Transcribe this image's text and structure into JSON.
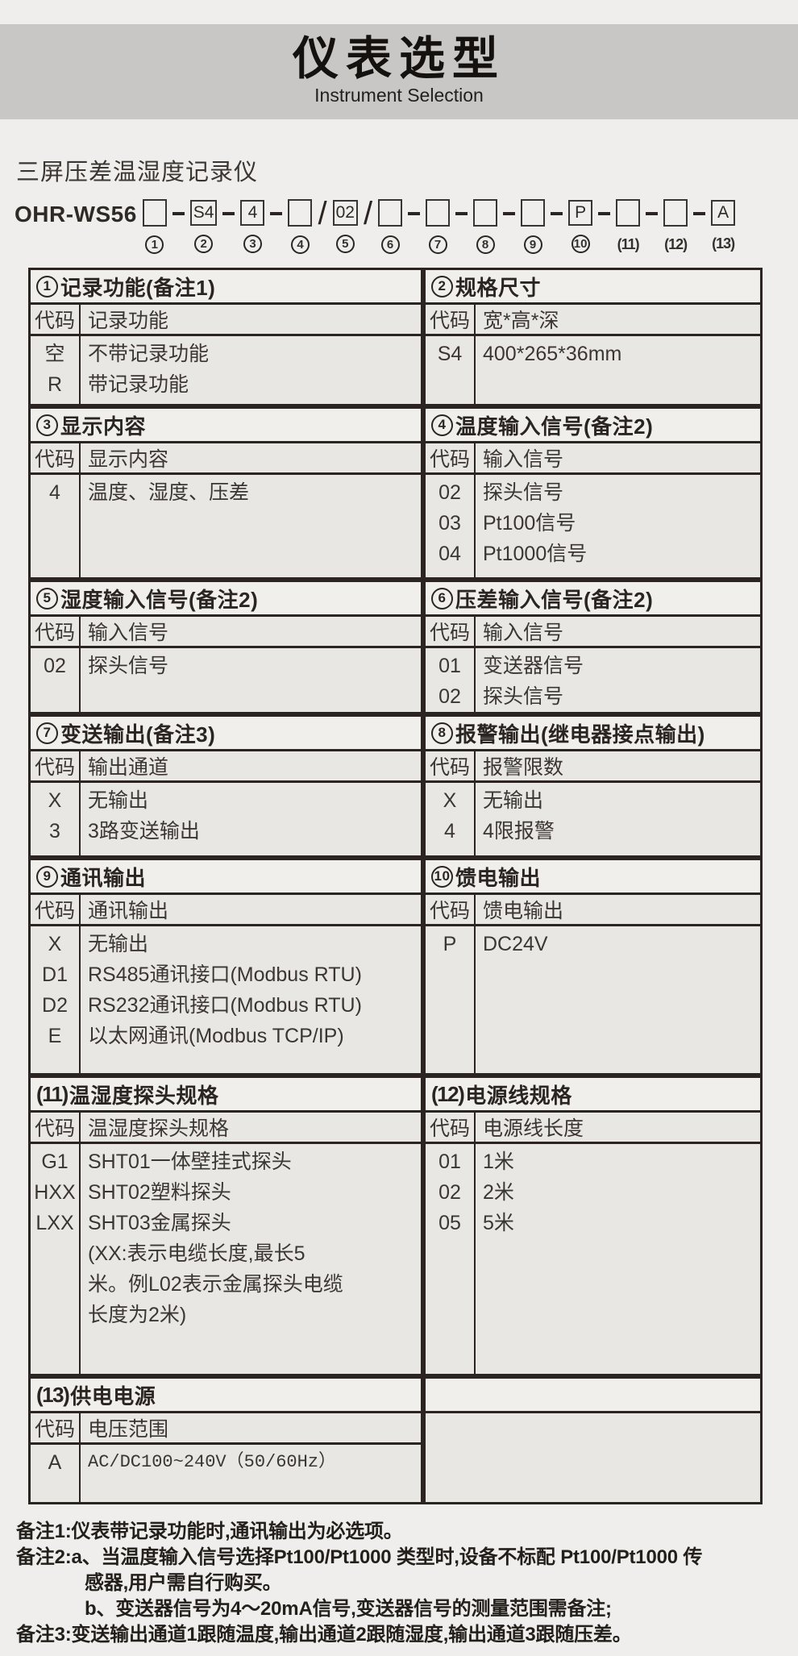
{
  "banner": {
    "title": "仪表选型",
    "subtitle": "Instrument Selection"
  },
  "product": {
    "name": "三屏压差温湿度记录仪",
    "model_prefix": "OHR-WS56"
  },
  "model_code": {
    "segments": [
      {
        "kind": "box",
        "value": "",
        "num": "1",
        "num_style": "circle"
      },
      {
        "kind": "dash"
      },
      {
        "kind": "box",
        "value": "S4",
        "num": "2",
        "num_style": "circle"
      },
      {
        "kind": "dash"
      },
      {
        "kind": "box",
        "value": "4",
        "num": "3",
        "num_style": "circle"
      },
      {
        "kind": "dash"
      },
      {
        "kind": "box",
        "value": "",
        "num": "4",
        "num_style": "circle"
      },
      {
        "kind": "slash",
        "value": "/"
      },
      {
        "kind": "box",
        "value": "02",
        "num": "5",
        "num_style": "circle"
      },
      {
        "kind": "slash",
        "value": "/"
      },
      {
        "kind": "box",
        "value": "",
        "num": "6",
        "num_style": "circle"
      },
      {
        "kind": "dash"
      },
      {
        "kind": "box",
        "value": "",
        "num": "7",
        "num_style": "circle"
      },
      {
        "kind": "dash"
      },
      {
        "kind": "box",
        "value": "",
        "num": "8",
        "num_style": "circle"
      },
      {
        "kind": "dash"
      },
      {
        "kind": "box",
        "value": "",
        "num": "9",
        "num_style": "circle"
      },
      {
        "kind": "dash"
      },
      {
        "kind": "box",
        "value": "P",
        "num": "10",
        "num_style": "circle"
      },
      {
        "kind": "dash"
      },
      {
        "kind": "box",
        "value": "",
        "num": "11",
        "num_style": "paren"
      },
      {
        "kind": "dash"
      },
      {
        "kind": "box",
        "value": "",
        "num": "12",
        "num_style": "paren"
      },
      {
        "kind": "dash"
      },
      {
        "kind": "box",
        "value": "A",
        "num": "13",
        "num_style": "paren"
      }
    ]
  },
  "table": {
    "sections": [
      {
        "num": "1",
        "num_style": "circle",
        "title": "记录功能(备注1)",
        "sub_code": "代码",
        "sub_label": "记录功能",
        "rows": [
          {
            "code": "空",
            "label": "不带记录功能"
          },
          {
            "code": "R",
            "label": "带记录功能"
          }
        ]
      },
      {
        "num": "2",
        "num_style": "circle",
        "title": "规格尺寸",
        "sub_code": "代码",
        "sub_label": "宽*高*深",
        "rows": [
          {
            "code": "S4",
            "label": "400*265*36mm"
          }
        ]
      },
      {
        "num": "3",
        "num_style": "circle",
        "title": "显示内容",
        "sub_code": "代码",
        "sub_label": "显示内容",
        "rows": [
          {
            "code": "4",
            "label": "温度、湿度、压差"
          }
        ]
      },
      {
        "num": "4",
        "num_style": "circle",
        "title": "温度输入信号(备注2)",
        "sub_code": "代码",
        "sub_label": "输入信号",
        "rows": [
          {
            "code": "02",
            "label": "探头信号"
          },
          {
            "code": "03",
            "label": "Pt100信号"
          },
          {
            "code": "04",
            "label": "Pt1000信号"
          }
        ]
      },
      {
        "num": "5",
        "num_style": "circle",
        "title": "湿度输入信号(备注2)",
        "sub_code": "代码",
        "sub_label": "输入信号",
        "rows": [
          {
            "code": "02",
            "label": "探头信号"
          }
        ]
      },
      {
        "num": "6",
        "num_style": "circle",
        "title": "压差输入信号(备注2)",
        "sub_code": "代码",
        "sub_label": "输入信号",
        "rows": [
          {
            "code": "01",
            "label": "变送器信号"
          },
          {
            "code": "02",
            "label": "探头信号"
          }
        ]
      },
      {
        "num": "7",
        "num_style": "circle",
        "title": "变送输出(备注3)",
        "sub_code": "代码",
        "sub_label": "输出通道",
        "rows": [
          {
            "code": "X",
            "label": "无输出"
          },
          {
            "code": "3",
            "label": "3路变送输出"
          }
        ]
      },
      {
        "num": "8",
        "num_style": "circle",
        "title": "报警输出(继电器接点输出)",
        "sub_code": "代码",
        "sub_label": "报警限数",
        "rows": [
          {
            "code": "X",
            "label": "无输出"
          },
          {
            "code": "4",
            "label": "4限报警"
          }
        ]
      },
      {
        "num": "9",
        "num_style": "circle",
        "title": "通讯输出",
        "sub_code": "代码",
        "sub_label": "通讯输出",
        "rows": [
          {
            "code": "X",
            "label": "无输出"
          },
          {
            "code": "D1",
            "label": "RS485通讯接口(Modbus RTU)"
          },
          {
            "code": "D2",
            "label": "RS232通讯接口(Modbus RTU)"
          },
          {
            "code": "E",
            "label": "以太网通讯(Modbus TCP/IP)"
          }
        ]
      },
      {
        "num": "10",
        "num_style": "circle",
        "title": "馈电输出",
        "sub_code": "代码",
        "sub_label": "馈电输出",
        "rows": [
          {
            "code": "P",
            "label": "DC24V"
          }
        ]
      },
      {
        "num": "11",
        "num_style": "paren",
        "title": "温湿度探头规格",
        "sub_code": "代码",
        "sub_label": "温湿度探头规格",
        "rows": [
          {
            "code": "G1",
            "label": "SHT01一体壁挂式探头"
          },
          {
            "code": "HXX",
            "label": "SHT02塑料探头"
          },
          {
            "code": "LXX",
            "label": "SHT03金属探头"
          },
          {
            "code": "",
            "label": "(XX:表示电缆长度,最长5"
          },
          {
            "code": "",
            "label": "米。例L02表示金属探头电缆"
          },
          {
            "code": "",
            "label": "长度为2米)"
          }
        ]
      },
      {
        "num": "12",
        "num_style": "paren",
        "title": "电源线规格",
        "sub_code": "代码",
        "sub_label": "电源线长度",
        "rows": [
          {
            "code": "01",
            "label": "1米"
          },
          {
            "code": "02",
            "label": "2米"
          },
          {
            "code": "05",
            "label": "5米"
          }
        ]
      },
      {
        "num": "13",
        "num_style": "paren",
        "title": "供电电源",
        "sub_code": "代码",
        "sub_label": "电压范围",
        "mono": true,
        "rows": [
          {
            "code": "A",
            "label": "AC/DC100~240V（50/60Hz）"
          }
        ]
      }
    ]
  },
  "notes": [
    {
      "indent": 0,
      "text": "备注1:仪表带记录功能时,通讯输出为必选项。"
    },
    {
      "indent": 0,
      "text": "备注2:a、当温度输入信号选择Pt100/Pt1000 类型时,设备不标配 Pt100/Pt1000 传"
    },
    {
      "indent": 1,
      "text": "感器,用户需自行购买。"
    },
    {
      "indent": 1,
      "text": "b、变送器信号为4～20mA信号,变送器信号的测量范围需备注;"
    },
    {
      "indent": 0,
      "text": "备注3:变送输出通道1跟随温度,输出通道2跟随湿度,输出通道3跟随压差。"
    }
  ],
  "colors": {
    "page_bg": "#f0eeec",
    "banner_bg": "#c9c7c5",
    "cell_bg": "#e9e7e4",
    "header_bg": "#f1efec",
    "border": "#2b2420",
    "text": "#34302c"
  }
}
